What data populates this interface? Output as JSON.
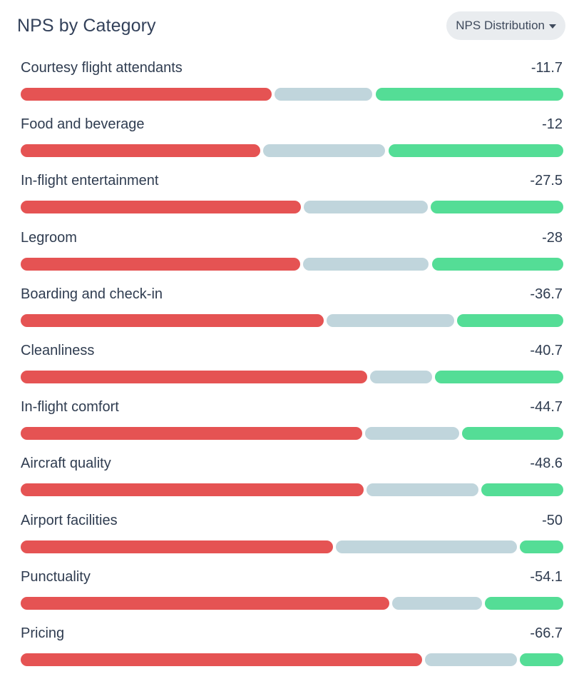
{
  "header": {
    "title": "NPS by Category",
    "dropdown_label": "NPS Distribution"
  },
  "colors": {
    "detractors": "#e55353",
    "passives": "#c0d5dc",
    "promoters": "#54dd96"
  },
  "chart_data": {
    "type": "bar",
    "stacked": true,
    "orientation": "horizontal",
    "title": "NPS by Category",
    "categories": [
      "Courtesy flight attendants",
      "Food and beverage",
      "In-flight entertainment",
      "Legroom",
      "Boarding and check-in",
      "Cleanliness",
      "In-flight comfort",
      "Aircraft quality",
      "Airport facilities",
      "Punctuality",
      "Pricing"
    ],
    "nps_values": [
      "-11.7",
      "-12",
      "-27.5",
      "-28",
      "-36.7",
      "-40.7",
      "-44.7",
      "-48.6",
      "-50",
      "-54.1",
      "-66.7"
    ],
    "series": [
      {
        "values": [
          46.7,
          44.6,
          52.2,
          52.1,
          56.5,
          64.6,
          63.6,
          63.9,
          58.1,
          68.7,
          74.8
        ]
      },
      {
        "values": [
          18.3,
          22.8,
          23.1,
          23.4,
          23.7,
          11.5,
          17.5,
          20.8,
          33.8,
          16.7,
          17.1
        ]
      },
      {
        "values": [
          35.0,
          32.6,
          24.7,
          24.5,
          19.8,
          23.9,
          18.9,
          15.3,
          8.1,
          14.6,
          8.1
        ]
      }
    ]
  }
}
